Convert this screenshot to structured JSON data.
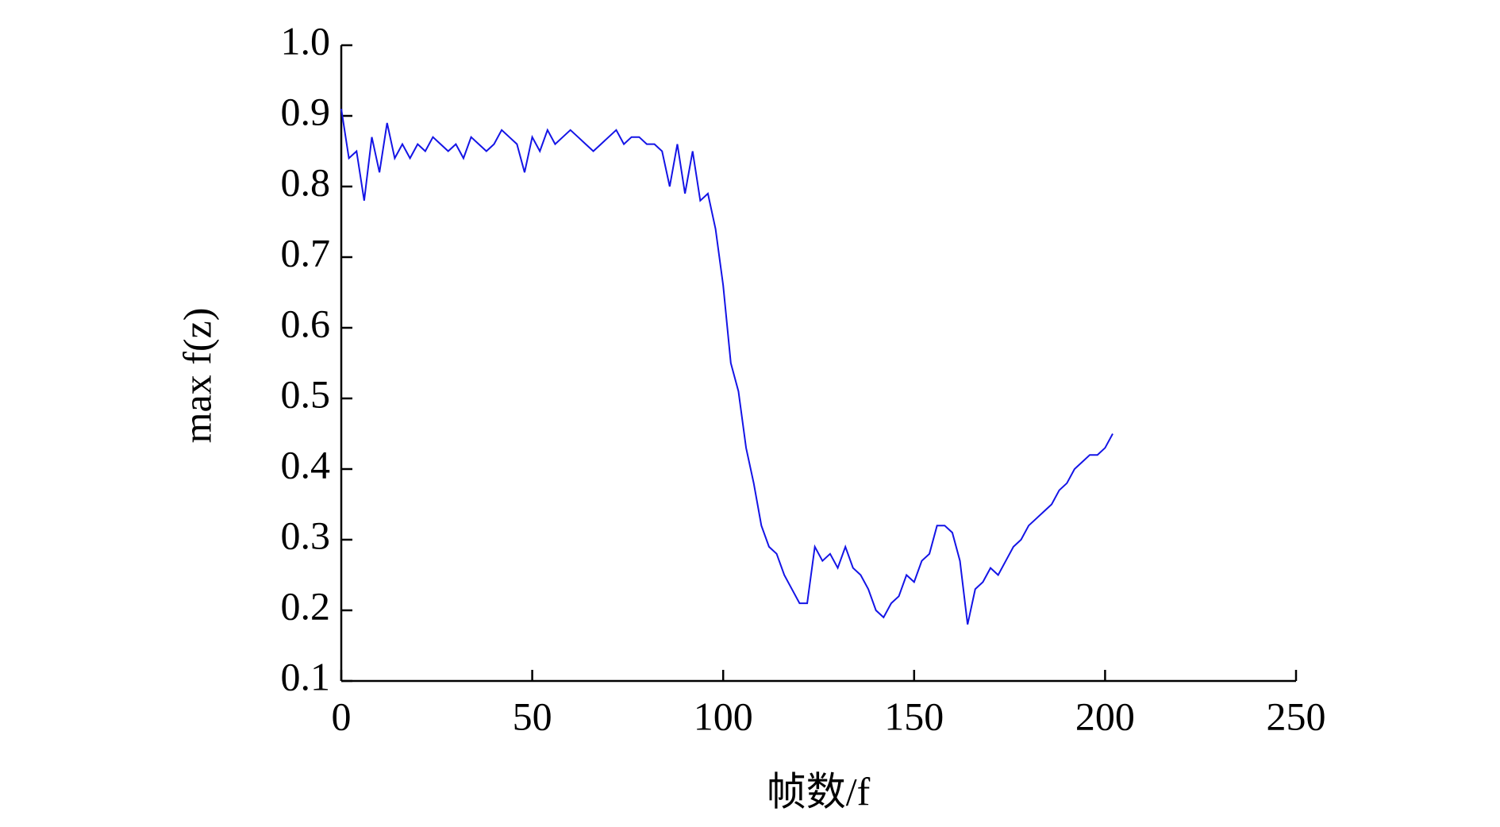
{
  "chart_data": {
    "type": "line",
    "xlabel": "帧数/f",
    "ylabel": "max f(z)",
    "x": [
      0,
      2,
      4,
      6,
      8,
      10,
      12,
      14,
      16,
      18,
      20,
      22,
      24,
      26,
      28,
      30,
      32,
      34,
      36,
      38,
      40,
      42,
      44,
      46,
      48,
      50,
      52,
      54,
      56,
      58,
      60,
      62,
      64,
      66,
      68,
      70,
      72,
      74,
      76,
      78,
      80,
      82,
      84,
      86,
      88,
      90,
      92,
      94,
      96,
      98,
      100,
      102,
      104,
      106,
      108,
      110,
      112,
      114,
      116,
      118,
      120,
      122,
      124,
      126,
      128,
      130,
      132,
      134,
      136,
      138,
      140,
      142,
      144,
      146,
      148,
      150,
      152,
      154,
      156,
      158,
      160,
      162,
      164,
      166,
      168,
      170,
      172,
      174,
      176,
      178,
      180,
      182,
      184,
      186,
      188,
      190,
      192,
      194,
      196,
      198,
      200,
      202
    ],
    "series": [
      {
        "color": "#1414e6",
        "values": [
          0.91,
          0.84,
          0.85,
          0.78,
          0.87,
          0.82,
          0.89,
          0.84,
          0.86,
          0.84,
          0.86,
          0.85,
          0.87,
          0.86,
          0.85,
          0.86,
          0.84,
          0.87,
          0.86,
          0.85,
          0.86,
          0.88,
          0.87,
          0.86,
          0.82,
          0.87,
          0.85,
          0.88,
          0.86,
          0.87,
          0.88,
          0.87,
          0.86,
          0.85,
          0.86,
          0.87,
          0.88,
          0.86,
          0.87,
          0.87,
          0.86,
          0.86,
          0.85,
          0.8,
          0.86,
          0.79,
          0.85,
          0.78,
          0.79,
          0.74,
          0.66,
          0.55,
          0.51,
          0.43,
          0.38,
          0.32,
          0.29,
          0.28,
          0.25,
          0.23,
          0.21,
          0.21,
          0.29,
          0.27,
          0.28,
          0.26,
          0.29,
          0.26,
          0.25,
          0.23,
          0.2,
          0.19,
          0.21,
          0.22,
          0.25,
          0.24,
          0.27,
          0.28,
          0.32,
          0.32,
          0.31,
          0.27,
          0.18,
          0.23,
          0.24,
          0.26,
          0.25,
          0.27,
          0.29,
          0.3,
          0.32,
          0.33,
          0.34,
          0.35,
          0.37,
          0.38,
          0.4,
          0.41,
          0.42,
          0.42,
          0.43,
          0.45
        ]
      }
    ],
    "xlim": [
      0,
      250
    ],
    "xticks": [
      0,
      50,
      100,
      150,
      200,
      250
    ],
    "ylim": [
      0.1,
      1
    ],
    "yticks": [
      0.1,
      0.2,
      0.3,
      0.4,
      0.5,
      0.6,
      0.7,
      0.8,
      0.9,
      {
        "value": 1,
        "label": "1.0"
      }
    ],
    "grid": false
  }
}
